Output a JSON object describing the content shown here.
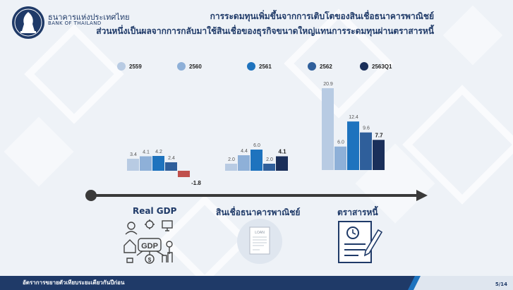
{
  "header": {
    "brand_th": "ธนาคารแห่งประเทศไทย",
    "brand_en": "BANK OF THAILAND",
    "title_line1": "การระดมทุนเพิ่มขึ้นจากการเติบโตของสินเชื่อธนาคารพาณิชย์",
    "title_line2": "ส่วนหนึ่งเป็นผลจากการกลับมาใช้สินเชื่อของธุรกิจขนาดใหญ่แทนการระดมทุนผ่านตราสารหนี้"
  },
  "colors": {
    "series": [
      "#b8cbe3",
      "#8eb0d8",
      "#1e73be",
      "#2f5f9b",
      "#1a2f5a"
    ],
    "negative": "#c0504d",
    "title": "#1f3a68"
  },
  "chart_data": {
    "type": "bar",
    "categories": [
      "Real GDP",
      "สินเชื่อธนาคารพาณิชย์",
      "ตราสารหนี้"
    ],
    "series": [
      {
        "name": "2559",
        "values": [
          3.4,
          2.0,
          20.9
        ]
      },
      {
        "name": "2560",
        "values": [
          4.1,
          4.4,
          6.0
        ]
      },
      {
        "name": "2561",
        "values": [
          4.2,
          6.0,
          12.4
        ]
      },
      {
        "name": "2562",
        "values": [
          2.4,
          2.0,
          9.6
        ]
      },
      {
        "name": "2563Q1",
        "values": [
          -1.8,
          4.1,
          7.7
        ]
      }
    ],
    "legend": "top",
    "grid": false
  },
  "icons": [
    "gdp-icon",
    "loan-icon",
    "bond-icon"
  ],
  "footer": {
    "text": "อัตราการขยายตัวเทียบระยะเดียวกันปีก่อน",
    "page": "5/14"
  }
}
